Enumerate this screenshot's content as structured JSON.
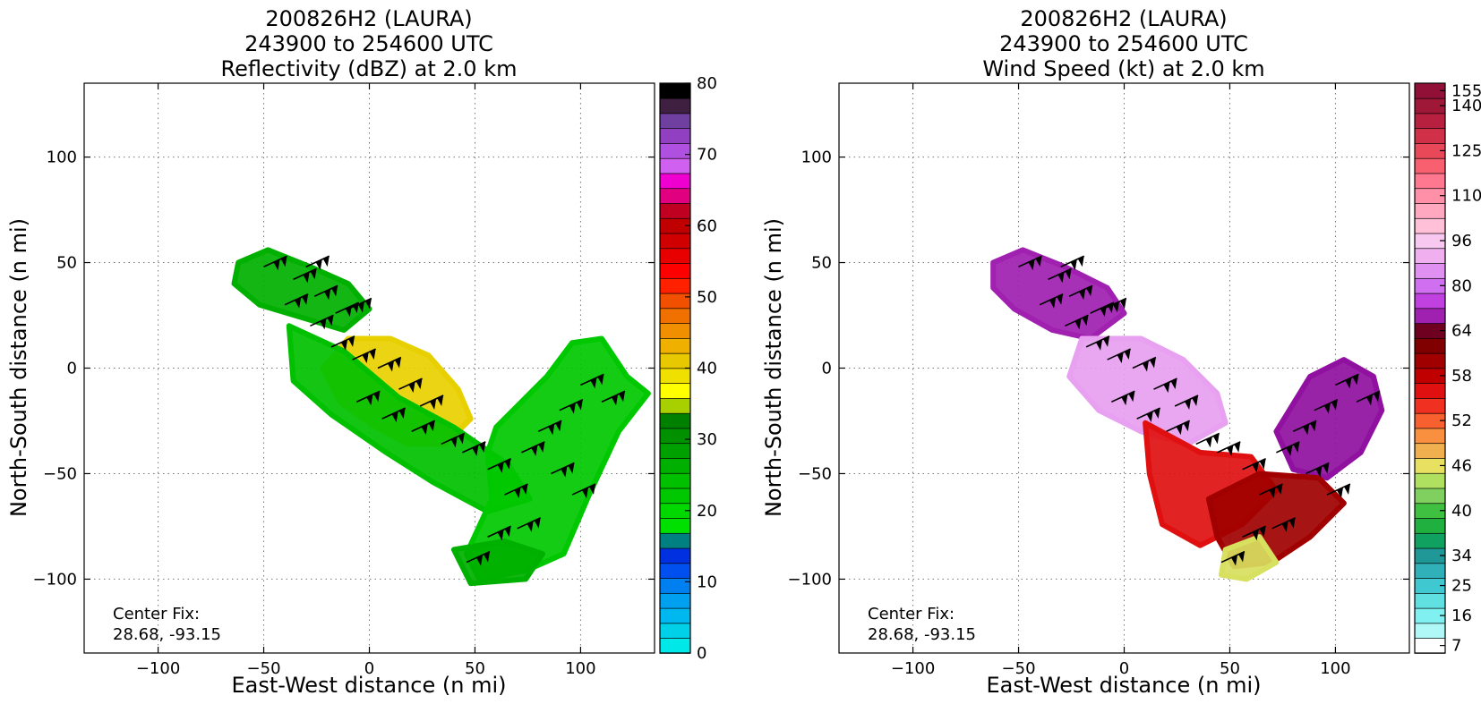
{
  "chart_data": [
    {
      "type": "heatmap",
      "title_lines": [
        "200826H2 (LAURA)",
        "243900 to 254600 UTC",
        "Reflectivity (dBZ) at 2.0 km"
      ],
      "xlabel": "East-West distance (n mi)",
      "ylabel": "North-South distance (n mi)",
      "xlim": [
        -135,
        135
      ],
      "ylim": [
        -135,
        135
      ],
      "xticks": [
        -100,
        -50,
        0,
        50,
        100
      ],
      "yticks": [
        -100,
        -50,
        0,
        50,
        100
      ],
      "xtick_labels": [
        "−100",
        "−50",
        "0",
        "50",
        "100"
      ],
      "ytick_labels": [
        "−100",
        "−50",
        "0",
        "50",
        "100"
      ],
      "grid": true,
      "annotation": [
        "Center Fix:",
        "28.68, -93.15"
      ],
      "colorbar": {
        "colors": [
          "#00e8e8",
          "#00d0e8",
          "#00b8f0",
          "#00a0f0",
          "#0080f0",
          "#0050f0",
          "#0030e0",
          "#008080",
          "#00e000",
          "#00d800",
          "#00c800",
          "#00c000",
          "#00b000",
          "#00a000",
          "#009000",
          "#008000",
          "#a8d000",
          "#ffff00",
          "#f0e000",
          "#e8c800",
          "#f0b000",
          "#f09000",
          "#f07000",
          "#f05000",
          "#ff2000",
          "#ff0000",
          "#e80000",
          "#d00000",
          "#c00000",
          "#c00020",
          "#e00080",
          "#f000d0",
          "#d060f0",
          "#b050e0",
          "#9040c0",
          "#7040a0",
          "#402040",
          "#000000"
        ],
        "ticks": [
          0,
          10,
          20,
          30,
          40,
          50,
          60,
          70,
          80
        ],
        "tick_labels": [
          "0",
          "10",
          "20",
          "30",
          "40",
          "50",
          "60",
          "70",
          "80"
        ],
        "range": [
          0,
          80
        ]
      },
      "features": [
        {
          "name": "rainband-northwest",
          "points": [
            [
              -62,
              50
            ],
            [
              -48,
              56
            ],
            [
              -28,
              48
            ],
            [
              -10,
              40
            ],
            [
              0,
              28
            ],
            [
              -12,
              18
            ],
            [
              -32,
              24
            ],
            [
              -52,
              30
            ],
            [
              -64,
              40
            ]
          ],
          "color": "#00b000"
        },
        {
          "name": "inner-core-ring",
          "points": [
            [
              -10,
              14
            ],
            [
              10,
              14
            ],
            [
              28,
              6
            ],
            [
              42,
              -10
            ],
            [
              48,
              -24
            ],
            [
              36,
              -36
            ],
            [
              18,
              -36
            ],
            [
              0,
              -26
            ],
            [
              -14,
              -16
            ],
            [
              -22,
              0
            ]
          ],
          "color": "#e8d000"
        },
        {
          "name": "southwest-band",
          "points": [
            [
              -38,
              20
            ],
            [
              -12,
              8
            ],
            [
              14,
              -14
            ],
            [
              40,
              -28
            ],
            [
              66,
              -46
            ],
            [
              76,
              -62
            ],
            [
              56,
              -68
            ],
            [
              30,
              -54
            ],
            [
              8,
              -40
            ],
            [
              -18,
              -22
            ],
            [
              -36,
              -6
            ]
          ],
          "color": "#00c000"
        },
        {
          "name": "eastern-band",
          "points": [
            [
              60,
              -28
            ],
            [
              84,
              -4
            ],
            [
              96,
              12
            ],
            [
              110,
              14
            ],
            [
              122,
              -4
            ],
            [
              132,
              -12
            ],
            [
              118,
              -30
            ],
            [
              104,
              -60
            ],
            [
              92,
              -88
            ],
            [
              74,
              -96
            ],
            [
              52,
              -100
            ],
            [
              46,
              -88
            ],
            [
              58,
              -62
            ],
            [
              56,
              -40
            ]
          ],
          "color": "#00c800"
        },
        {
          "name": "south-fragment",
          "points": [
            [
              40,
              -86
            ],
            [
              64,
              -82
            ],
            [
              82,
              -88
            ],
            [
              74,
              -100
            ],
            [
              48,
              -102
            ]
          ],
          "color": "#00b000"
        }
      ]
    },
    {
      "type": "heatmap",
      "title_lines": [
        "200826H2 (LAURA)",
        "243900 to 254600 UTC",
        "Wind Speed (kt) at 2.0 km"
      ],
      "xlabel": "East-West distance (n mi)",
      "ylabel": "North-South distance (n mi)",
      "xlim": [
        -135,
        135
      ],
      "ylim": [
        -135,
        135
      ],
      "xticks": [
        -100,
        -50,
        0,
        50,
        100
      ],
      "yticks": [
        -100,
        -50,
        0,
        50,
        100
      ],
      "xtick_labels": [
        "−100",
        "−50",
        "0",
        "50",
        "100"
      ],
      "ytick_labels": [
        "−100",
        "−50",
        "0",
        "50",
        "100"
      ],
      "grid": true,
      "annotation": [
        "Center Fix:",
        "28.68, -93.15"
      ],
      "colorbar": {
        "colors": [
          "#ffffff",
          "#b0f8f8",
          "#80f0f0",
          "#60e0e0",
          "#40c8d0",
          "#30b0b8",
          "#209898",
          "#10a060",
          "#20b040",
          "#40c040",
          "#80d060",
          "#b0e060",
          "#e8e060",
          "#f0b050",
          "#f89040",
          "#f86030",
          "#f03020",
          "#e01010",
          "#c00000",
          "#a00000",
          "#800000",
          "#700020",
          "#a020b0",
          "#c040e0",
          "#d070f0",
          "#e090f0",
          "#f0b0f0",
          "#f8c8f0",
          "#ffc0d8",
          "#ffa8c0",
          "#ff90a8",
          "#ff7890",
          "#f86070",
          "#e84858",
          "#d03048",
          "#b82040",
          "#a01838",
          "#901038"
        ],
        "ticks": [
          7,
          16,
          25,
          34,
          40,
          46,
          52,
          58,
          64,
          80,
          96,
          110,
          125,
          140,
          155
        ],
        "tick_labels": [
          "7",
          "16",
          "25",
          "34",
          "40",
          "46",
          "52",
          "58",
          "64",
          "80",
          "96",
          "110",
          "125",
          "140",
          "155"
        ],
        "tick_indices": [
          0,
          2,
          4,
          6,
          9,
          12,
          15,
          18,
          21,
          24,
          27,
          30,
          33,
          36,
          37
        ]
      },
      "features": [
        {
          "name": "northwest-arm",
          "points": [
            [
              -62,
              50
            ],
            [
              -48,
              56
            ],
            [
              -28,
              48
            ],
            [
              -8,
              38
            ],
            [
              0,
              26
            ],
            [
              -16,
              14
            ],
            [
              -34,
              18
            ],
            [
              -52,
              28
            ],
            [
              -62,
              38
            ]
          ],
          "color": "#a020b0"
        },
        {
          "name": "inner-core",
          "points": [
            [
              -20,
              14
            ],
            [
              8,
              14
            ],
            [
              28,
              4
            ],
            [
              44,
              -12
            ],
            [
              48,
              -26
            ],
            [
              30,
              -36
            ],
            [
              8,
              -30
            ],
            [
              -12,
              -20
            ],
            [
              -26,
              -4
            ]
          ],
          "color": "#e8a0f0"
        },
        {
          "name": "southwest-band",
          "points": [
            [
              10,
              -26
            ],
            [
              36,
              -40
            ],
            [
              60,
              -42
            ],
            [
              72,
              -58
            ],
            [
              56,
              -74
            ],
            [
              36,
              -84
            ],
            [
              18,
              -74
            ],
            [
              12,
              -50
            ]
          ],
          "color": "#e01010"
        },
        {
          "name": "east-core",
          "points": [
            [
              88,
              -4
            ],
            [
              104,
              4
            ],
            [
              118,
              -4
            ],
            [
              122,
              -20
            ],
            [
              112,
              -40
            ],
            [
              96,
              -52
            ],
            [
              80,
              -48
            ],
            [
              72,
              -30
            ]
          ],
          "color": "#9010a0"
        },
        {
          "name": "southeast-band",
          "points": [
            [
              40,
              -62
            ],
            [
              64,
              -50
            ],
            [
              92,
              -52
            ],
            [
              104,
              -64
            ],
            [
              88,
              -80
            ],
            [
              70,
              -92
            ],
            [
              52,
              -94
            ],
            [
              44,
              -80
            ]
          ],
          "color": "#a00000"
        },
        {
          "name": "south-fragment",
          "points": [
            [
              48,
              -86
            ],
            [
              64,
              -80
            ],
            [
              72,
              -92
            ],
            [
              58,
              -100
            ],
            [
              46,
              -98
            ]
          ],
          "color": "#d8e060"
        }
      ]
    }
  ]
}
